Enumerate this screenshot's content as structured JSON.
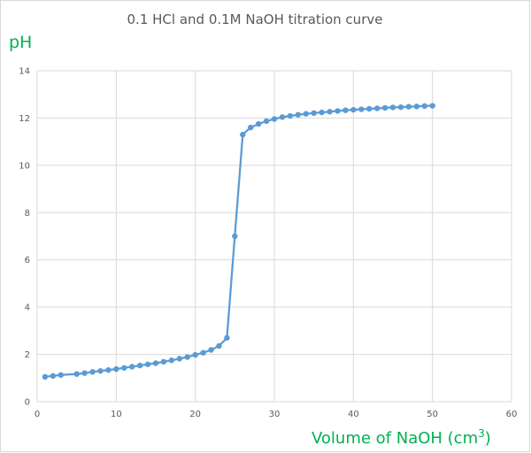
{
  "chart_data": {
    "type": "line",
    "title": "0.1 HCl and 0.1M NaOH titration curve",
    "ylabel": "pH",
    "xlabel_main": "Volume of NaOH (cm",
    "xlabel_sup": "3",
    "xlabel_close": ")",
    "xlim": [
      0,
      60
    ],
    "ylim": [
      0,
      14
    ],
    "x_ticks": [
      0,
      10,
      20,
      30,
      40,
      50,
      60
    ],
    "y_ticks": [
      0,
      2,
      4,
      6,
      8,
      10,
      12,
      14
    ],
    "grid": true,
    "legend": "none",
    "series": [
      {
        "color": "#5b9bd5",
        "marker": "circle",
        "x": [
          1,
          2,
          3,
          5,
          6,
          7,
          8,
          9,
          10,
          11,
          12,
          13,
          14,
          15,
          16,
          17,
          18,
          19,
          20,
          21,
          22,
          23,
          24,
          25,
          26,
          27,
          28,
          29,
          30,
          31,
          32,
          33,
          34,
          35,
          36,
          37,
          38,
          39,
          40,
          41,
          42,
          43,
          44,
          45,
          46,
          47,
          48,
          49,
          50
        ],
        "y": [
          1.05,
          1.09,
          1.13,
          1.17,
          1.21,
          1.26,
          1.3,
          1.34,
          1.38,
          1.43,
          1.48,
          1.53,
          1.58,
          1.63,
          1.69,
          1.75,
          1.82,
          1.89,
          1.98,
          2.07,
          2.19,
          2.36,
          2.7,
          7.0,
          11.3,
          11.6,
          11.75,
          11.87,
          11.96,
          12.04,
          12.09,
          12.14,
          12.18,
          12.21,
          12.24,
          12.27,
          12.3,
          12.33,
          12.35,
          12.37,
          12.39,
          12.41,
          12.43,
          12.45,
          12.46,
          12.48,
          12.49,
          12.51,
          12.52
        ]
      }
    ]
  }
}
